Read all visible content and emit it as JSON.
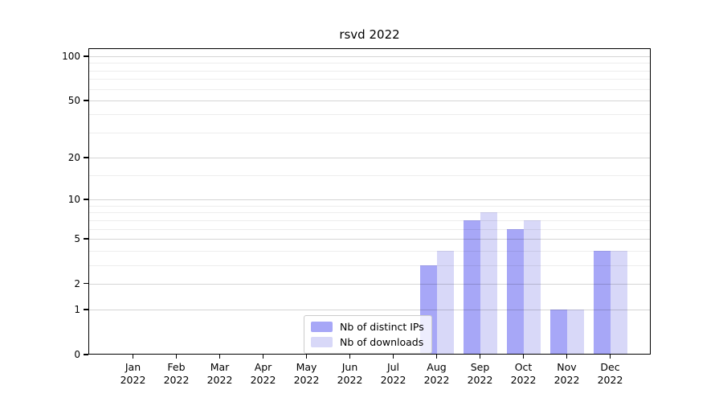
{
  "title": "rsvd 2022",
  "chart_data": {
    "type": "bar",
    "title": "rsvd 2022",
    "categories": [
      "Jan 2022",
      "Feb 2022",
      "Mar 2022",
      "Apr 2022",
      "May 2022",
      "Jun 2022",
      "Jul 2022",
      "Aug 2022",
      "Sep 2022",
      "Oct 2022",
      "Nov 2022",
      "Dec 2022"
    ],
    "series": [
      {
        "name": "Nb of distinct IPs",
        "color": "#a7a7f7",
        "values": [
          0,
          0,
          0,
          0,
          0,
          0,
          0,
          3,
          7,
          6,
          1,
          4
        ]
      },
      {
        "name": "Nb of downloads",
        "color": "#d8d8f8",
        "values": [
          0,
          0,
          0,
          0,
          0,
          0,
          0,
          4,
          8,
          7,
          1,
          4
        ]
      }
    ],
    "yscale": "log1p",
    "ylim": [
      0,
      113.4
    ],
    "yticks_major": [
      0,
      1,
      2,
      5,
      10,
      20,
      50,
      100
    ],
    "yticks_minor": [
      3,
      4,
      6,
      7,
      8,
      9,
      15,
      30,
      40,
      60,
      70,
      80,
      90
    ],
    "xlabel": "",
    "ylabel": "",
    "grid": true,
    "legend_position": "lower center"
  },
  "colors": {
    "spine": "#000000",
    "grid_major": "rgba(0,0,0,0.165)",
    "grid_minor": "rgba(0,0,0,0.07)",
    "background": "#ffffff"
  }
}
